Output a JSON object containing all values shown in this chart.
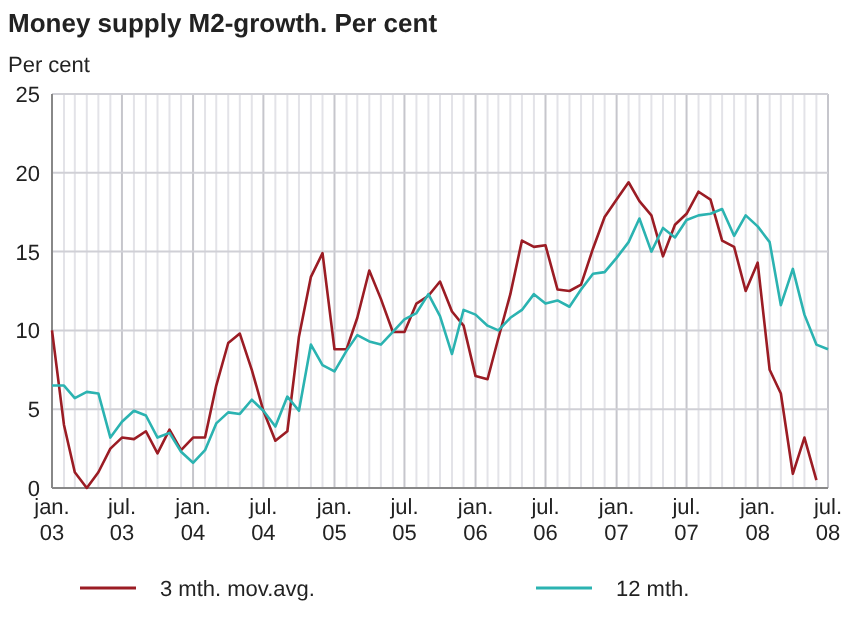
{
  "chart_data": {
    "type": "line",
    "title": "Money supply M2-growth. Per cent",
    "ylabel": "Per cent",
    "x": [
      "2003-01",
      "2003-02",
      "2003-03",
      "2003-04",
      "2003-05",
      "2003-06",
      "2003-07",
      "2003-08",
      "2003-09",
      "2003-10",
      "2003-11",
      "2003-12",
      "2004-01",
      "2004-02",
      "2004-03",
      "2004-04",
      "2004-05",
      "2004-06",
      "2004-07",
      "2004-08",
      "2004-09",
      "2004-10",
      "2004-11",
      "2004-12",
      "2005-01",
      "2005-02",
      "2005-03",
      "2005-04",
      "2005-05",
      "2005-06",
      "2005-07",
      "2005-08",
      "2005-09",
      "2005-10",
      "2005-11",
      "2005-12",
      "2006-01",
      "2006-02",
      "2006-03",
      "2006-04",
      "2006-05",
      "2006-06",
      "2006-07",
      "2006-08",
      "2006-09",
      "2006-10",
      "2006-11",
      "2006-12",
      "2007-01",
      "2007-02",
      "2007-03",
      "2007-04",
      "2007-05",
      "2007-06",
      "2007-07",
      "2007-08",
      "2007-09",
      "2007-10",
      "2007-11",
      "2007-12",
      "2008-01",
      "2008-02",
      "2008-03",
      "2008-04",
      "2008-05",
      "2008-06",
      "2008-07"
    ],
    "series": [
      {
        "name": "3 mth. mov.avg.",
        "color": "#9b1c24",
        "values": [
          10,
          4,
          1,
          0,
          1,
          2.5,
          3.2,
          3.1,
          3.6,
          2.2,
          3.7,
          2.4,
          3.2,
          3.2,
          6.5,
          9.2,
          9.8,
          7.5,
          4.9,
          3,
          3.6,
          9.6,
          13.4,
          14.9,
          8.8,
          8.8,
          10.8,
          13.8,
          12,
          9.9,
          9.9,
          11.7,
          12.2,
          13.1,
          11.2,
          10.3,
          7.1,
          6.9,
          9.5,
          12.3,
          15.7,
          15.3,
          15.4,
          12.6,
          12.5,
          12.9,
          15.2,
          17.2,
          18.3,
          19.4,
          18.2,
          17.3,
          14.7,
          16.7,
          17.4,
          18.8,
          18.3,
          15.7,
          15.3,
          12.5,
          14.3,
          7.5,
          6,
          0.9,
          3.2,
          0.5,
          null
        ]
      },
      {
        "name": "12 mth.",
        "color": "#2bb3b1",
        "values": [
          6.5,
          6.5,
          5.7,
          6.1,
          6,
          3.2,
          4.2,
          4.9,
          4.6,
          3.2,
          3.5,
          2.3,
          1.6,
          2.4,
          4.1,
          4.8,
          4.7,
          5.6,
          4.9,
          3.9,
          5.8,
          4.9,
          9.1,
          7.8,
          7.4,
          8.7,
          9.7,
          9.3,
          9.1,
          9.9,
          10.7,
          11.1,
          12.3,
          10.9,
          8.5,
          11.3,
          11,
          10.3,
          10,
          10.8,
          11.3,
          12.3,
          11.7,
          11.9,
          11.5,
          12.6,
          13.6,
          13.7,
          14.6,
          15.6,
          17.1,
          15,
          16.5,
          15.9,
          17,
          17.3,
          17.4,
          17.7,
          16,
          17.3,
          16.6,
          15.6,
          11.6,
          13.9,
          11,
          9.1,
          8.8
        ]
      }
    ],
    "xlim": [
      "2003-01",
      "2008-07"
    ],
    "xticks": [
      {
        "value": "2003-01",
        "label": "jan. 03"
      },
      {
        "value": "2003-02",
        "label": null
      },
      {
        "value": "2003-03",
        "label": null
      },
      {
        "value": "2003-04",
        "label": null
      },
      {
        "value": "2003-05",
        "label": null
      },
      {
        "value": "2003-06",
        "label": null
      },
      {
        "value": "2003-07",
        "label": "jul. 03"
      },
      {
        "value": "2003-08",
        "label": null
      },
      {
        "value": "2003-09",
        "label": null
      },
      {
        "value": "2003-10",
        "label": null
      },
      {
        "value": "2003-11",
        "label": null
      },
      {
        "value": "2003-12",
        "label": null
      },
      {
        "value": "2004-01",
        "label": "jan. 04"
      },
      {
        "value": "2004-02",
        "label": null
      },
      {
        "value": "2004-03",
        "label": null
      },
      {
        "value": "2004-04",
        "label": null
      },
      {
        "value": "2004-05",
        "label": null
      },
      {
        "value": "2004-06",
        "label": null
      },
      {
        "value": "2004-07",
        "label": "jul. 04"
      },
      {
        "value": "2004-08",
        "label": null
      },
      {
        "value": "2004-09",
        "label": null
      },
      {
        "value": "2004-10",
        "label": null
      },
      {
        "value": "2004-11",
        "label": null
      },
      {
        "value": "2004-12",
        "label": null
      },
      {
        "value": "2005-01",
        "label": "jan. 05"
      },
      {
        "value": "2005-02",
        "label": null
      },
      {
        "value": "2005-03",
        "label": null
      },
      {
        "value": "2005-04",
        "label": null
      },
      {
        "value": "2005-05",
        "label": null
      },
      {
        "value": "2005-06",
        "label": null
      },
      {
        "value": "2005-07",
        "label": "jul. 05"
      },
      {
        "value": "2005-08",
        "label": null
      },
      {
        "value": "2005-09",
        "label": null
      },
      {
        "value": "2005-10",
        "label": null
      },
      {
        "value": "2005-11",
        "label": null
      },
      {
        "value": "2005-12",
        "label": null
      },
      {
        "value": "2006-01",
        "label": "jan. 06"
      },
      {
        "value": "2006-02",
        "label": null
      },
      {
        "value": "2006-03",
        "label": null
      },
      {
        "value": "2006-04",
        "label": null
      },
      {
        "value": "2006-05",
        "label": null
      },
      {
        "value": "2006-06",
        "label": null
      },
      {
        "value": "2006-07",
        "label": "jul. 06"
      },
      {
        "value": "2006-08",
        "label": null
      },
      {
        "value": "2006-09",
        "label": null
      },
      {
        "value": "2006-10",
        "label": null
      },
      {
        "value": "2006-11",
        "label": null
      },
      {
        "value": "2006-12",
        "label": null
      },
      {
        "value": "2007-01",
        "label": "jan. 07"
      },
      {
        "value": "2007-02",
        "label": null
      },
      {
        "value": "2007-03",
        "label": null
      },
      {
        "value": "2007-04",
        "label": null
      },
      {
        "value": "2007-05",
        "label": null
      },
      {
        "value": "2007-06",
        "label": null
      },
      {
        "value": "2007-07",
        "label": "jul. 07"
      },
      {
        "value": "2007-08",
        "label": null
      },
      {
        "value": "2007-09",
        "label": null
      },
      {
        "value": "2007-10",
        "label": null
      },
      {
        "value": "2007-11",
        "label": null
      },
      {
        "value": "2007-12",
        "label": null
      },
      {
        "value": "2008-01",
        "label": "jan. 08"
      },
      {
        "value": "2008-02",
        "label": null
      },
      {
        "value": "2008-03",
        "label": null
      },
      {
        "value": "2008-04",
        "label": null
      },
      {
        "value": "2008-05",
        "label": null
      },
      {
        "value": "2008-06",
        "label": null
      },
      {
        "value": "2008-07",
        "label": "jul. 08"
      }
    ],
    "ylim": [
      0,
      25
    ],
    "yticks": [
      0,
      5,
      10,
      15,
      20,
      25
    ],
    "grid": true,
    "legend": "bottom",
    "line_style": "solid",
    "marker": "none"
  }
}
